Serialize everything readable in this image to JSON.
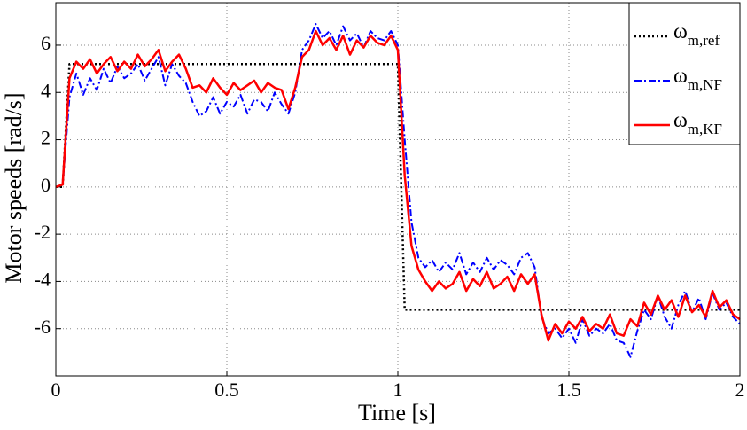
{
  "chart_data": {
    "type": "line",
    "xlabel": "Time [s]",
    "ylabel": "Motor speeds [rad/s]",
    "x": [
      0,
      0.02,
      0.04,
      0.06,
      0.08,
      0.1,
      0.12,
      0.14,
      0.16,
      0.18,
      0.2,
      0.22,
      0.24,
      0.26,
      0.28,
      0.3,
      0.32,
      0.34,
      0.36,
      0.38,
      0.4,
      0.42,
      0.44,
      0.46,
      0.48,
      0.5,
      0.52,
      0.54,
      0.56,
      0.58,
      0.6,
      0.62,
      0.64,
      0.66,
      0.68,
      0.7,
      0.72,
      0.74,
      0.76,
      0.78,
      0.8,
      0.82,
      0.84,
      0.86,
      0.88,
      0.9,
      0.92,
      0.94,
      0.96,
      0.98,
      1,
      1.02,
      1.04,
      1.06,
      1.08,
      1.1,
      1.12,
      1.14,
      1.16,
      1.18,
      1.2,
      1.22,
      1.24,
      1.26,
      1.28,
      1.3,
      1.32,
      1.34,
      1.36,
      1.38,
      1.4,
      1.42,
      1.44,
      1.46,
      1.48,
      1.5,
      1.52,
      1.54,
      1.56,
      1.58,
      1.6,
      1.62,
      1.64,
      1.66,
      1.68,
      1.7,
      1.72,
      1.74,
      1.76,
      1.78,
      1.8,
      1.82,
      1.84,
      1.86,
      1.88,
      1.9,
      1.92,
      1.94,
      1.96,
      1.98,
      2
    ],
    "series": [
      {
        "name": "ωm,ref",
        "color": "#000000",
        "style": "dotted",
        "values": [
          0,
          0,
          5.2,
          5.2,
          5.2,
          5.2,
          5.2,
          5.2,
          5.2,
          5.2,
          5.2,
          5.2,
          5.2,
          5.2,
          5.2,
          5.2,
          5.2,
          5.2,
          5.2,
          5.2,
          5.2,
          5.2,
          5.2,
          5.2,
          5.2,
          5.2,
          5.2,
          5.2,
          5.2,
          5.2,
          5.2,
          5.2,
          5.2,
          5.2,
          5.2,
          5.2,
          5.2,
          5.2,
          5.2,
          5.2,
          5.2,
          5.2,
          5.2,
          5.2,
          5.2,
          5.2,
          5.2,
          5.2,
          5.2,
          5.2,
          5.2,
          -5.2,
          -5.2,
          -5.2,
          -5.2,
          -5.2,
          -5.2,
          -5.2,
          -5.2,
          -5.2,
          -5.2,
          -5.2,
          -5.2,
          -5.2,
          -5.2,
          -5.2,
          -5.2,
          -5.2,
          -5.2,
          -5.2,
          -5.2,
          -5.2,
          -5.2,
          -5.2,
          -5.2,
          -5.2,
          -5.2,
          -5.2,
          -5.2,
          -5.2,
          -5.2,
          -5.2,
          -5.2,
          -5.2,
          -5.2,
          -5.2,
          -5.2,
          -5.2,
          -5.2,
          -5.2,
          -5.2,
          -5.2,
          -5.2,
          -5.2,
          -5.2,
          -5.2,
          -5.2,
          -5.2,
          -5.2,
          -5.2,
          -5.2
        ]
      },
      {
        "name": "ωm,NF",
        "color": "#0000ff",
        "style": "dashdot",
        "values": [
          0,
          0.1,
          3.8,
          4.8,
          3.9,
          4.6,
          4.1,
          5.0,
          4.4,
          5.1,
          4.6,
          4.8,
          5.2,
          4.5,
          5.0,
          5.5,
          4.3,
          5.2,
          4.7,
          4.4,
          3.6,
          3.0,
          3.2,
          3.8,
          3.1,
          3.6,
          3.4,
          3.9,
          3.1,
          3.7,
          3.6,
          3.2,
          4.0,
          3.5,
          3.1,
          4.0,
          5.8,
          6.2,
          6.9,
          6.3,
          6.6,
          6.0,
          6.8,
          6.2,
          6.5,
          5.9,
          6.6,
          6.3,
          6.2,
          6.6,
          6.0,
          2.0,
          -1.5,
          -3.0,
          -3.4,
          -3.1,
          -3.6,
          -3.2,
          -3.5,
          -2.8,
          -3.7,
          -3.2,
          -3.6,
          -3.0,
          -3.5,
          -3.1,
          -3.3,
          -3.7,
          -3.0,
          -2.8,
          -3.4,
          -5.5,
          -6.2,
          -6.0,
          -6.4,
          -6.0,
          -6.6,
          -5.6,
          -6.3,
          -6.0,
          -6.2,
          -5.8,
          -6.5,
          -6.6,
          -7.2,
          -6.1,
          -5.2,
          -5.6,
          -4.6,
          -5.5,
          -6.0,
          -5.0,
          -4.4,
          -5.3,
          -4.7,
          -5.6,
          -4.5,
          -5.2,
          -4.9,
          -5.5,
          -5.8
        ]
      },
      {
        "name": "ωm,KF",
        "color": "#ff0000",
        "style": "solid",
        "values": [
          0,
          0.1,
          4.6,
          5.3,
          5.0,
          5.4,
          4.8,
          5.2,
          5.5,
          4.9,
          5.3,
          5.0,
          5.6,
          5.1,
          5.4,
          5.8,
          4.9,
          5.3,
          5.6,
          5.0,
          4.2,
          4.3,
          4.0,
          4.6,
          4.2,
          3.9,
          4.4,
          4.1,
          4.3,
          4.5,
          4.0,
          4.4,
          4.2,
          4.1,
          3.3,
          4.2,
          5.5,
          5.8,
          6.6,
          6.0,
          6.3,
          5.8,
          6.4,
          5.6,
          6.2,
          5.9,
          6.4,
          6.1,
          6.0,
          6.4,
          5.8,
          0.5,
          -2.5,
          -3.5,
          -4.0,
          -4.4,
          -4.0,
          -4.3,
          -4.1,
          -3.6,
          -4.4,
          -3.9,
          -4.2,
          -3.6,
          -4.3,
          -4.1,
          -3.8,
          -4.4,
          -3.7,
          -4.1,
          -3.7,
          -5.4,
          -6.5,
          -5.8,
          -6.2,
          -5.7,
          -6.0,
          -5.5,
          -6.1,
          -5.8,
          -6.0,
          -5.4,
          -6.2,
          -6.3,
          -5.6,
          -5.9,
          -4.9,
          -5.4,
          -4.6,
          -5.2,
          -4.8,
          -5.5,
          -4.6,
          -5.3,
          -5.0,
          -5.5,
          -4.4,
          -5.1,
          -4.8,
          -5.4,
          -5.6
        ]
      }
    ],
    "xlim": [
      0,
      2
    ],
    "xticks": [
      0,
      0.5,
      1,
      1.5,
      2
    ],
    "ylim": [
      -8,
      7.8
    ],
    "yticks": [
      -6,
      -4,
      -2,
      0,
      2,
      4,
      6
    ],
    "grid": true,
    "legend": "upper right"
  }
}
